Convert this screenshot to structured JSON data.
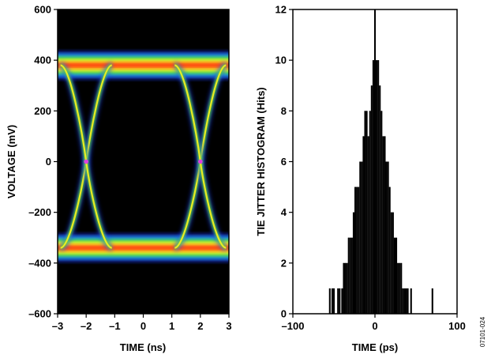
{
  "figure_id": "07101-024",
  "chart_data": [
    {
      "type": "heatmap",
      "description": "eye diagram (persistence display)",
      "xlabel": "TIME (ns)",
      "ylabel": "VOLTAGE (mV)",
      "xlim": [
        -3,
        3
      ],
      "ylim": [
        -600,
        600
      ],
      "x_ticks": [
        -3,
        -2,
        -1,
        0,
        1,
        2,
        3
      ],
      "y_ticks": [
        -600,
        -400,
        -200,
        0,
        200,
        400,
        600
      ],
      "x_tick_labels": [
        "–3",
        "–2",
        "–1",
        "0",
        "1",
        "2",
        "3"
      ],
      "y_tick_labels": [
        "–600",
        "–400",
        "–200",
        "0",
        "200",
        "400",
        "600"
      ],
      "high_level_mV": 380,
      "low_level_mV": -340,
      "crossing_points_ns": [
        -2,
        2
      ],
      "crossing_level_mV": 0,
      "background_color": "#000000",
      "color_scale": [
        "#1a3cff",
        "#22c8e0",
        "#5adc3c",
        "#f0f020",
        "#ff8c1a",
        "#ff4010"
      ],
      "crossing_color": "#e040e0",
      "grid": false
    },
    {
      "type": "bar",
      "description": "histogram",
      "xlabel": "TIME (ps)",
      "ylabel": "TIE JITTER HISTOGRAM (Hits)",
      "xlim": [
        -100,
        100
      ],
      "ylim": [
        0,
        12
      ],
      "x_ticks": [
        -100,
        0,
        100
      ],
      "y_ticks": [
        0,
        2,
        4,
        6,
        8,
        10,
        12
      ],
      "x_tick_labels": [
        "–100",
        "0",
        "100"
      ],
      "y_tick_labels": [
        "0",
        "2",
        "4",
        "6",
        "8",
        "10",
        "12"
      ],
      "bin_centers_ps": [
        -55,
        -52,
        -50,
        -47,
        -45,
        -43,
        -40,
        -38,
        -36,
        -34,
        -32,
        -30,
        -28,
        -26,
        -24,
        -22,
        -20,
        -18,
        -16,
        -14,
        -12,
        -10,
        -8,
        -6,
        -4,
        -2,
        0,
        2,
        4,
        6,
        8,
        10,
        12,
        14,
        16,
        18,
        20,
        22,
        24,
        26,
        28,
        30,
        32,
        34,
        36,
        38,
        40,
        42,
        44,
        70
      ],
      "hits": [
        1,
        1,
        1,
        0,
        1,
        1,
        1,
        2,
        2,
        2,
        3,
        3,
        3,
        4,
        5,
        5,
        5,
        6,
        6,
        7,
        8,
        8,
        7,
        8,
        9,
        10,
        12,
        10,
        10,
        9,
        8,
        7,
        7,
        6,
        6,
        5,
        4,
        4,
        3,
        3,
        2,
        2,
        2,
        1,
        1,
        1,
        1,
        0,
        1,
        1
      ],
      "bar_color": "#000000",
      "grid": false
    }
  ]
}
